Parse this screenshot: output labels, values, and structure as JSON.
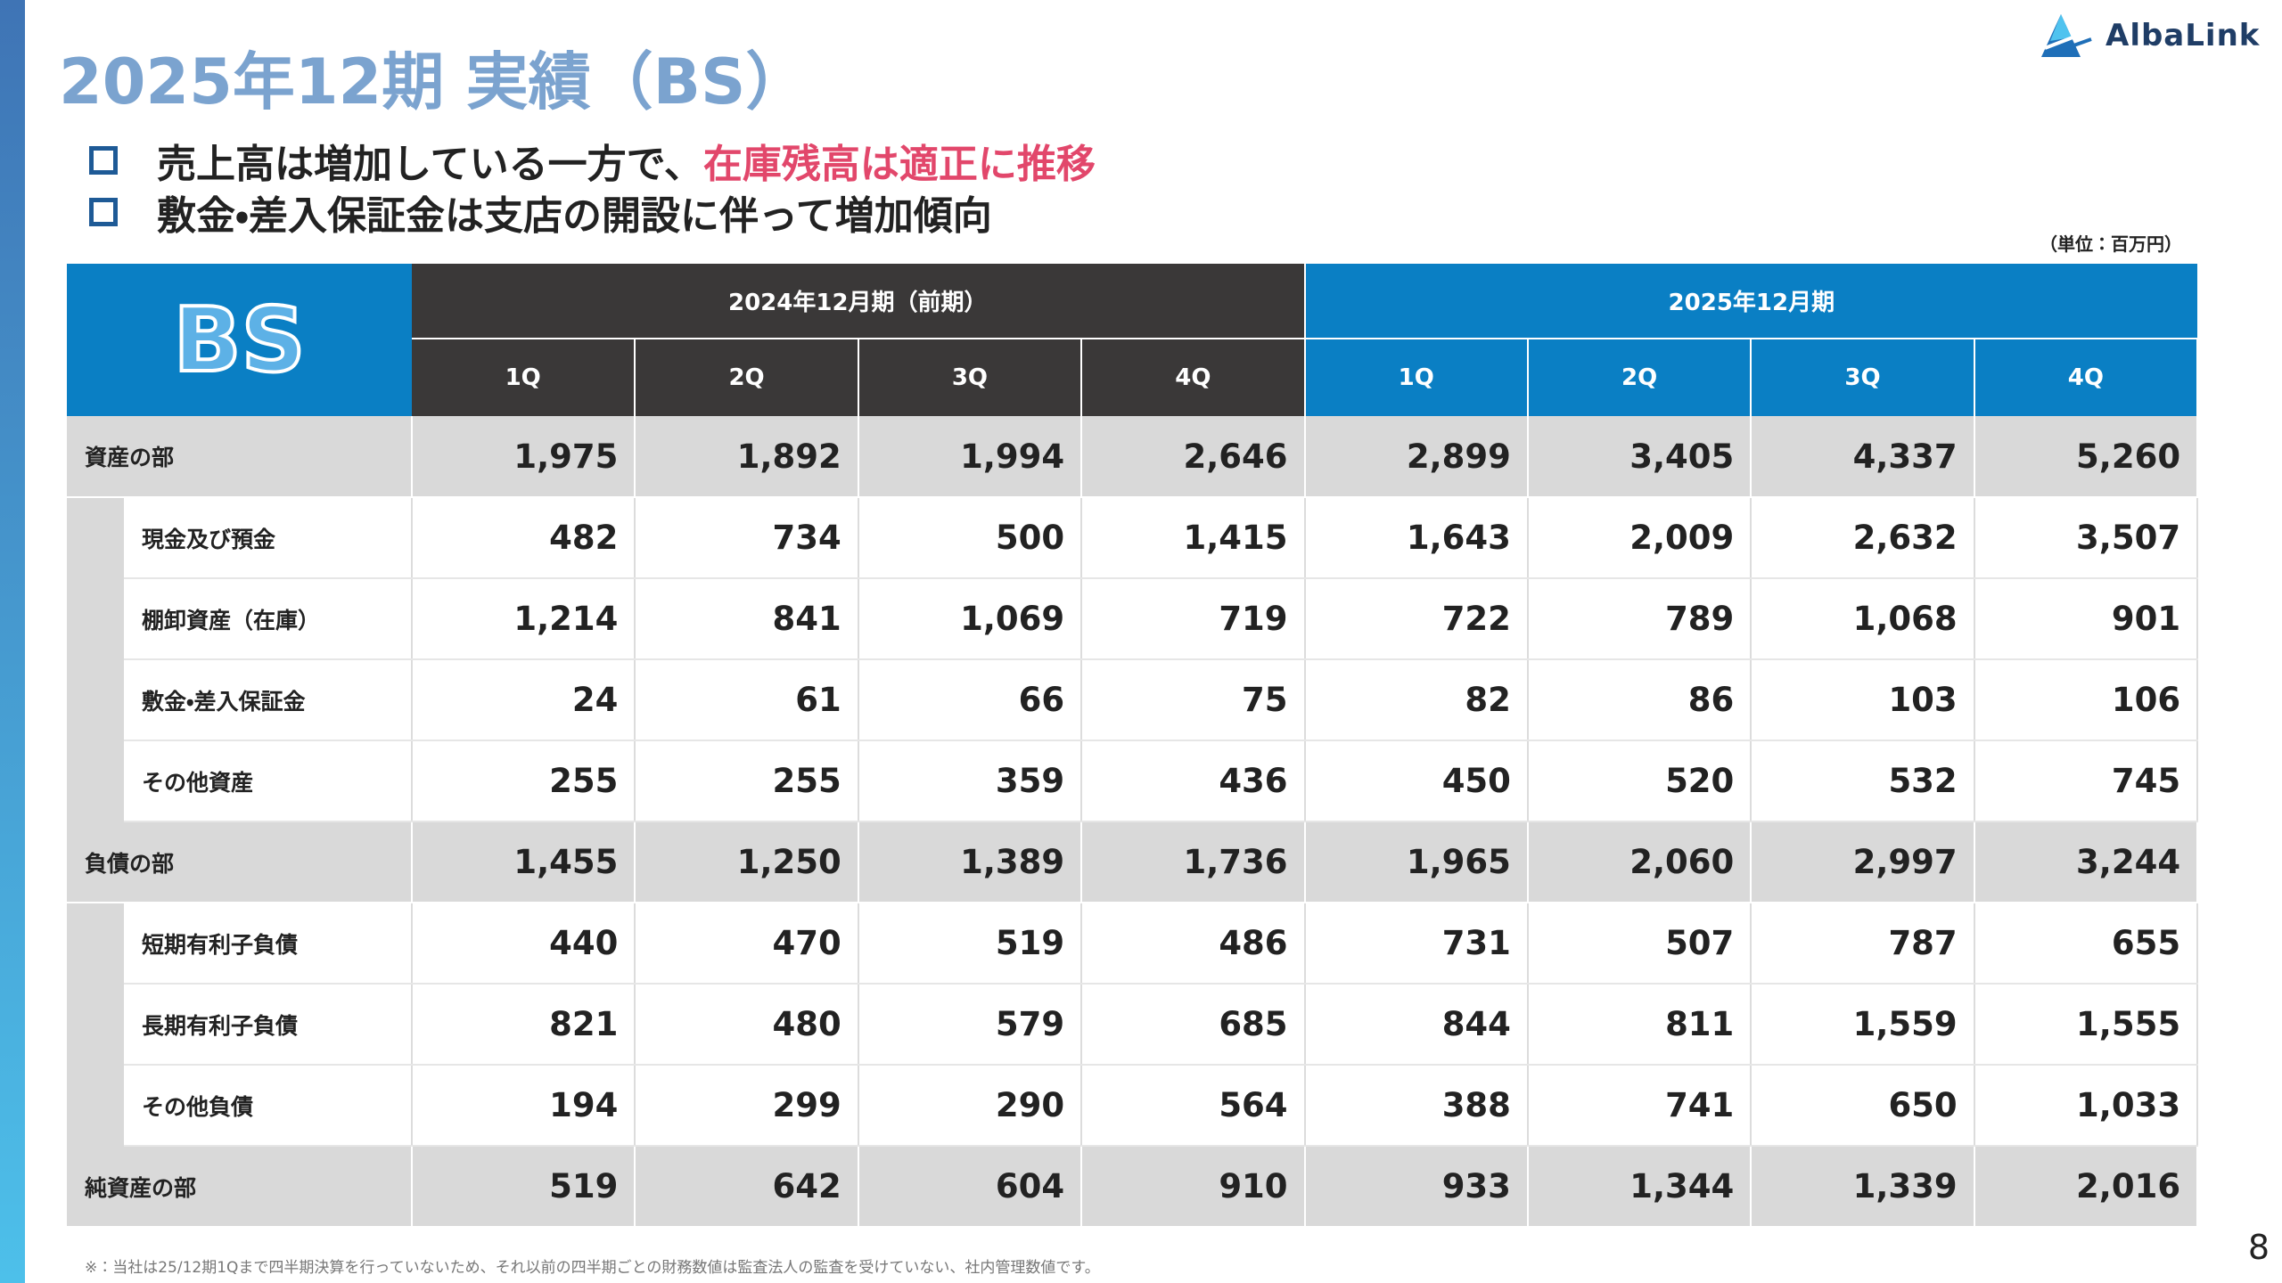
{
  "header": {
    "title": "2025年12期 実績（BS）",
    "logo": "AlbaLink"
  },
  "bullets": [
    {
      "text": "売上高は増加している一方で、",
      "highlight": "在庫残高は適正に推移"
    },
    {
      "text": "敷金・差入保証金は支店の開設に伴って増加傾向"
    }
  ],
  "unit": "（単位：百万円）",
  "table": {
    "corner": "BS",
    "periods": [
      "2024年12月期（前期）",
      "2025年12月期"
    ],
    "quarters": [
      "1Q",
      "2Q",
      "3Q",
      "4Q",
      "1Q",
      "2Q",
      "3Q",
      "4Q"
    ],
    "rows": [
      {
        "label": "資産の部",
        "level": "main",
        "values": [
          "1,975",
          "1,892",
          "1,994",
          "2,646",
          "2,899",
          "3,405",
          "4,337",
          "5,260"
        ]
      },
      {
        "label": "現金及び預金",
        "level": "sub",
        "values": [
          "482",
          "734",
          "500",
          "1,415",
          "1,643",
          "2,009",
          "2,632",
          "3,507"
        ]
      },
      {
        "label": "棚卸資産（在庫）",
        "level": "sub",
        "values": [
          "1,214",
          "841",
          "1,069",
          "719",
          "722",
          "789",
          "1,068",
          "901"
        ]
      },
      {
        "label": "敷金・差入保証金",
        "level": "sub",
        "values": [
          "24",
          "61",
          "66",
          "75",
          "82",
          "86",
          "103",
          "106"
        ]
      },
      {
        "label": "その他資産",
        "level": "sub",
        "values": [
          "255",
          "255",
          "359",
          "436",
          "450",
          "520",
          "532",
          "745"
        ]
      },
      {
        "label": "負債の部",
        "level": "main",
        "values": [
          "1,455",
          "1,250",
          "1,389",
          "1,736",
          "1,965",
          "2,060",
          "2,997",
          "3,244"
        ]
      },
      {
        "label": "短期有利子負債",
        "level": "sub",
        "values": [
          "440",
          "470",
          "519",
          "486",
          "731",
          "507",
          "787",
          "655"
        ]
      },
      {
        "label": "長期有利子負債",
        "level": "sub",
        "values": [
          "821",
          "480",
          "579",
          "685",
          "844",
          "811",
          "1,559",
          "1,555"
        ]
      },
      {
        "label": "その他負債",
        "level": "sub",
        "values": [
          "194",
          "299",
          "290",
          "564",
          "388",
          "741",
          "650",
          "1,033"
        ]
      },
      {
        "label": "純資産の部",
        "level": "main",
        "values": [
          "519",
          "642",
          "604",
          "910",
          "933",
          "1,344",
          "1,339",
          "2,016"
        ]
      }
    ]
  },
  "footnote": "※：当社は25/12期1Qまで四半期決算を行っていないため、それ以前の四半期ごとの財務数値は監査法人の監査を受けていない、社内管理数値です。",
  "page_number": "8"
}
